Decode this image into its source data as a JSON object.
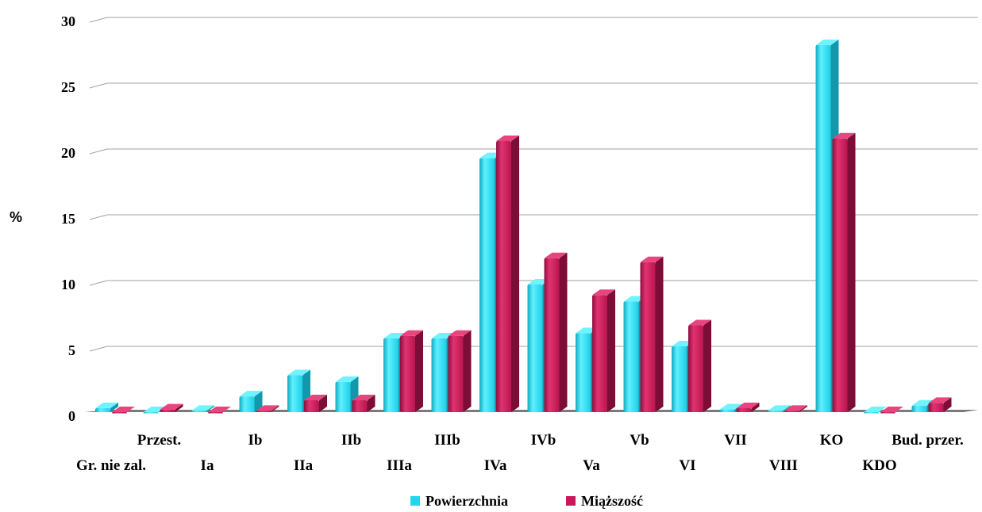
{
  "chart_data": {
    "type": "bar",
    "ylabel": "%",
    "ylim": [
      0,
      30
    ],
    "yticks": [
      "0",
      "5",
      "10",
      "15",
      "20",
      "25",
      "30"
    ],
    "grid": true,
    "legend_position": "bottom",
    "categories": [
      "Gr. nie zal.",
      "Przest.",
      "Ia",
      "Ib",
      "IIa",
      "IIb",
      "IIIa",
      "IIIb",
      "IVa",
      "IVb",
      "Va",
      "Vb",
      "VI",
      "VII",
      "VIII",
      "KO",
      "KDO",
      "Bud. przer."
    ],
    "series": [
      {
        "name": "Powierzchnia",
        "color": "#1fd8ee",
        "values": [
          0.3,
          0.0,
          0.1,
          1.2,
          2.8,
          2.3,
          5.6,
          5.6,
          19.3,
          9.7,
          6.0,
          8.4,
          5.0,
          0.2,
          0.1,
          27.9,
          0.0,
          0.5
        ]
      },
      {
        "name": "Miąższość",
        "color": "#c8185a",
        "values": [
          0.0,
          0.2,
          0.0,
          0.1,
          0.9,
          0.9,
          5.8,
          5.8,
          20.6,
          11.7,
          8.9,
          11.4,
          6.6,
          0.3,
          0.1,
          20.8,
          0.0,
          0.7
        ]
      }
    ]
  }
}
